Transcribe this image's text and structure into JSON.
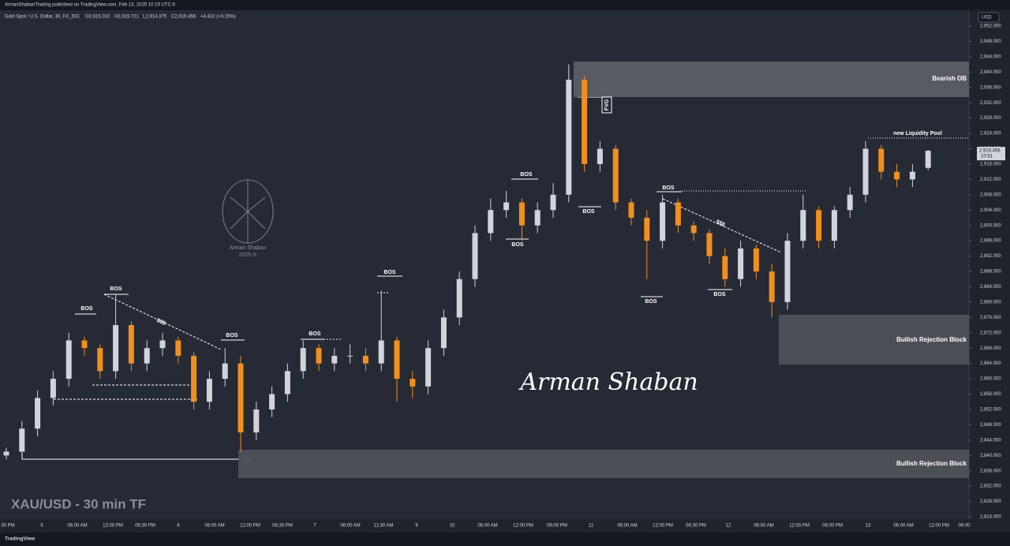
{
  "header": {
    "publisher": "ArmanShabanTrading published on TradingView.com, Feb 13, 2025 10:19 UTC-5",
    "symbol": "Gold Spot / U.S. Dollar, 30, FX_IDC",
    "open": "O2,915.010",
    "high": "H2,919.721",
    "low": "L2,914.375",
    "close": "C2,919.456",
    "change": "+4.410 (+0.15%)"
  },
  "chart_data": {
    "type": "candlestick",
    "title": "XAU/USD - 30 min TF",
    "currency": "USD",
    "up_color": "#d1d4dc",
    "down_color": "#f0901e",
    "grid": false,
    "ylim": [
      2824,
      2952
    ],
    "yticks": [
      {
        "value": 2824,
        "label": "2,824.000"
      },
      {
        "value": 2828,
        "label": "2,828.000"
      },
      {
        "value": 2832,
        "label": "2,832.000"
      },
      {
        "value": 2836,
        "label": "2,836.000"
      },
      {
        "value": 2840,
        "label": "2,840.000"
      },
      {
        "value": 2844,
        "label": "2,844.000"
      },
      {
        "value": 2848,
        "label": "2,848.000"
      },
      {
        "value": 2852,
        "label": "2,852.000"
      },
      {
        "value": 2856,
        "label": "2,856.000"
      },
      {
        "value": 2860,
        "label": "2,860.000"
      },
      {
        "value": 2864,
        "label": "2,864.000"
      },
      {
        "value": 2868,
        "label": "2,868.000"
      },
      {
        "value": 2872,
        "label": "2,872.000"
      },
      {
        "value": 2876,
        "label": "2,876.000"
      },
      {
        "value": 2880,
        "label": "2,880.000"
      },
      {
        "value": 2884,
        "label": "2,884.000"
      },
      {
        "value": 2888,
        "label": "2,888.000"
      },
      {
        "value": 2892,
        "label": "2,892.000"
      },
      {
        "value": 2896,
        "label": "2,896.000"
      },
      {
        "value": 2900,
        "label": "2,900.000"
      },
      {
        "value": 2904,
        "label": "2,904.000"
      },
      {
        "value": 2908,
        "label": "2,908.000"
      },
      {
        "value": 2912,
        "label": "2,912.000"
      },
      {
        "value": 2916,
        "label": "2,916.000"
      },
      {
        "value": 2920,
        "label": "2,920.000"
      },
      {
        "value": 2924,
        "label": "2,924.000"
      },
      {
        "value": 2928,
        "label": "2,928.000"
      },
      {
        "value": 2932,
        "label": "2,932.000"
      },
      {
        "value": 2936,
        "label": "2,936.000"
      },
      {
        "value": 2940,
        "label": "2,940.000"
      },
      {
        "value": 2944,
        "label": "2,944.000"
      },
      {
        "value": 2948,
        "label": "2,948.000"
      },
      {
        "value": 2952,
        "label": "2,952.000"
      }
    ],
    "last_price": {
      "value": 2919.456,
      "label": "2,919.456"
    },
    "countdown": "10:51",
    "x_labels": [
      "30 PM",
      "5",
      "06:00 AM",
      "12:00 PM",
      "06:30 PM",
      "6",
      "06:00 AM",
      "12:00 PM",
      "06:30 PM",
      "7",
      "06:00 AM",
      "11:30 AM",
      "9",
      "10",
      "06:00 AM",
      "12:00 PM",
      "06:00 PM",
      "11",
      "06:00 AM",
      "12:00 PM",
      "06:30 PM",
      "12",
      "06:00 AM",
      "12:00 PM",
      "06:00 PM",
      "13",
      "06:00 AM",
      "12:00 PM",
      "06:00"
    ],
    "open": [
      2840,
      2841,
      2847,
      2855,
      2860,
      2870,
      2868,
      2862,
      2874,
      2864,
      2868,
      2870,
      2866,
      2854,
      2860,
      2864,
      2846,
      2852,
      2856,
      2862,
      2868,
      2864,
      2866,
      2866,
      2864,
      2870,
      2860,
      2858,
      2868,
      2876,
      2886,
      2898,
      2904,
      2906,
      2900,
      2904,
      2908,
      2938,
      2916,
      2920,
      2906,
      2902,
      2896,
      2906,
      2900,
      2898,
      2892,
      2886,
      2894,
      2888,
      2880,
      2896,
      2904,
      2896,
      2904,
      2908,
      2920,
      2914,
      2912,
      2915.01
    ],
    "high": [
      2842,
      2849,
      2857,
      2862,
      2872,
      2871,
      2869,
      2882,
      2875,
      2870,
      2872,
      2871,
      2867,
      2862,
      2868,
      2866,
      2854,
      2858,
      2864,
      2870,
      2869,
      2868,
      2869,
      2868,
      2883,
      2871,
      2862,
      2870,
      2878,
      2888,
      2900,
      2907,
      2909,
      2907,
      2906,
      2911,
      2942,
      2939,
      2922,
      2921,
      2907,
      2904,
      2908,
      2907,
      2901,
      2899,
      2894,
      2896,
      2895,
      2890,
      2898,
      2908,
      2905,
      2905,
      2910,
      2922,
      2921,
      2916,
      2916,
      2919.721
    ],
    "low": [
      2839,
      2839,
      2845,
      2853,
      2858,
      2866,
      2860,
      2860,
      2862,
      2862,
      2866,
      2864,
      2852,
      2852,
      2858,
      2841,
      2844,
      2850,
      2854,
      2860,
      2862,
      2862,
      2864,
      2862,
      2862,
      2854,
      2855,
      2856,
      2866,
      2874,
      2884,
      2896,
      2902,
      2896,
      2898,
      2902,
      2906,
      2914,
      2914,
      2904,
      2900,
      2886,
      2894,
      2898,
      2896,
      2890,
      2884,
      2884,
      2886,
      2876,
      2878,
      2894,
      2894,
      2894,
      2902,
      2906,
      2912,
      2910,
      2910,
      2914.375
    ],
    "close": [
      2841,
      2847,
      2855,
      2860,
      2870,
      2868,
      2862,
      2874,
      2864,
      2868,
      2870,
      2866,
      2854,
      2860,
      2864,
      2846,
      2852,
      2856,
      2862,
      2868,
      2864,
      2866,
      2866,
      2864,
      2870,
      2860,
      2858,
      2868,
      2876,
      2886,
      2898,
      2904,
      2906,
      2900,
      2904,
      2908,
      2938,
      2916,
      2920,
      2906,
      2902,
      2896,
      2906,
      2900,
      2898,
      2892,
      2886,
      2894,
      2888,
      2880,
      2896,
      2904,
      2896,
      2904,
      2908,
      2920,
      2914,
      2912,
      2914,
      2919.456
    ],
    "annotations": [
      "BOS",
      "BOS",
      "BOS",
      "BOS",
      "BOS",
      "BOS",
      "BOS",
      "BOS",
      "BOS",
      "BOS",
      "BOS",
      "$$$",
      "$$$",
      "FVG",
      "new Liquidity Pool"
    ],
    "zones": [
      "Bearish OB",
      "Bullish Rejection Block",
      "Bullish Rejection Block"
    ],
    "signature": "Arman Shaban",
    "watermark": [
      "Arman Shaban",
      "2025 ®"
    ]
  },
  "footer": {
    "brand": "TradingView"
  }
}
